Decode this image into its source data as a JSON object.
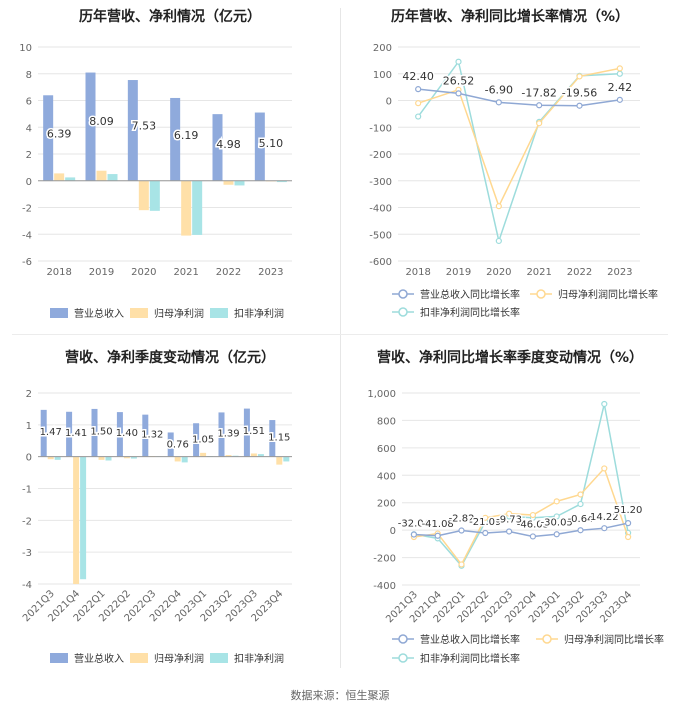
{
  "footer": {
    "source": "数据来源：恒生聚源"
  },
  "colors": {
    "revenue": "#8faadc",
    "net_profit": "#ffe0a8",
    "deducted": "#a8e4e6",
    "rev_line": "#8fa8d4",
    "np_line": "#ffd890",
    "ded_line": "#9ddcdc"
  },
  "chart_data": [
    {
      "id": "annual-bars",
      "type": "bar",
      "title": "历年营收、净利情况（亿元）",
      "categories": [
        "2018",
        "2019",
        "2020",
        "2021",
        "2022",
        "2023"
      ],
      "series": [
        {
          "name": "营业总收入",
          "values": [
            6.39,
            8.09,
            7.53,
            6.19,
            4.98,
            5.1
          ],
          "labels": [
            "6.39",
            "8.09",
            "7.53",
            "6.19",
            "4.98",
            "5.10"
          ]
        },
        {
          "name": "归母净利润",
          "values": [
            0.55,
            0.75,
            -2.2,
            -4.1,
            -0.3,
            -0.05
          ]
        },
        {
          "name": "扣非净利润",
          "values": [
            0.25,
            0.5,
            -2.25,
            -4.05,
            -0.35,
            -0.1
          ]
        }
      ],
      "ylim": [
        -6,
        10
      ],
      "yticks": [
        "-6",
        "-4",
        "-2",
        "0",
        "2",
        "4",
        "6",
        "8",
        "10"
      ]
    },
    {
      "id": "annual-growth",
      "type": "line",
      "title": "历年营收、净利同比增长率情况（%）",
      "categories": [
        "2018",
        "2019",
        "2020",
        "2021",
        "2022",
        "2023"
      ],
      "series": [
        {
          "name": "营业总收入同比增长率",
          "values": [
            42.4,
            26.52,
            -6.9,
            -17.82,
            -19.56,
            2.42
          ],
          "labels": [
            "42.40",
            "26.52",
            "-6.90",
            "-17.82",
            "-19.56",
            "2.42"
          ]
        },
        {
          "name": "归母净利润同比增长率",
          "values": [
            -10,
            40,
            -395,
            -85,
            90,
            120
          ]
        },
        {
          "name": "扣非净利润同比增长率",
          "values": [
            -60,
            145,
            -525,
            -80,
            92,
            100
          ]
        }
      ],
      "ylim": [
        -600,
        200
      ],
      "yticks": [
        "-600",
        "-500",
        "-400",
        "-300",
        "-200",
        "-100",
        "0",
        "100",
        "200"
      ]
    },
    {
      "id": "quarterly-bars",
      "type": "bar",
      "title": "营收、净利季度变动情况（亿元）",
      "categories": [
        "2021Q3",
        "2021Q4",
        "2022Q1",
        "2022Q2",
        "2022Q3",
        "2022Q4",
        "2023Q1",
        "2023Q2",
        "2023Q3",
        "2023Q4"
      ],
      "series": [
        {
          "name": "营业总收入",
          "values": [
            1.47,
            1.41,
            1.5,
            1.4,
            1.32,
            0.76,
            1.05,
            1.39,
            1.51,
            1.15
          ],
          "labels": [
            "1.47",
            "1.41",
            "1.50",
            "1.40",
            "1.32",
            "0.76",
            "1.05",
            "1.39",
            "1.51",
            "1.15"
          ]
        },
        {
          "name": "归母净利润",
          "values": [
            -0.08,
            -4.0,
            -0.1,
            -0.05,
            0.02,
            -0.15,
            0.12,
            0.05,
            0.1,
            -0.25
          ]
        },
        {
          "name": "扣非净利润",
          "values": [
            -0.1,
            -3.85,
            -0.12,
            -0.06,
            0.01,
            -0.18,
            0.02,
            0.03,
            0.08,
            -0.15
          ]
        }
      ],
      "ylim": [
        -4,
        2
      ],
      "yticks": [
        "-4",
        "-3",
        "-2",
        "-1",
        "0",
        "1",
        "2"
      ]
    },
    {
      "id": "quarterly-growth",
      "type": "line",
      "title": "营收、净利同比增长率季度变动情况（%）",
      "categories": [
        "2021Q3",
        "2021Q4",
        "2022Q1",
        "2022Q2",
        "2022Q3",
        "2022Q4",
        "2023Q1",
        "2023Q2",
        "2023Q3",
        "2023Q4"
      ],
      "series": [
        {
          "name": "营业总收入同比增长率",
          "values": [
            -32.04,
            -41.08,
            -2.82,
            -21.09,
            -9.73,
            -46.03,
            -30.05,
            -0.64,
            14.22,
            51.2
          ],
          "labels": [
            "-32.04",
            "-41.08",
            "-2.82",
            "-21.09",
            "-9.73",
            "-46.03",
            "-30.05",
            "-0.64",
            "14.22",
            "51.20"
          ]
        },
        {
          "name": "归母净利润同比增长率",
          "values": [
            -50,
            -25,
            -250,
            90,
            120,
            110,
            210,
            260,
            450,
            -50
          ]
        },
        {
          "name": "扣非净利润同比增长率",
          "values": [
            -30,
            -60,
            -260,
            60,
            100,
            90,
            100,
            190,
            920,
            -20
          ]
        }
      ],
      "ylim": [
        -400,
        1000
      ],
      "yticks": [
        "-400",
        "-200",
        "0",
        "200",
        "400",
        "600",
        "800",
        "1,000"
      ]
    }
  ]
}
